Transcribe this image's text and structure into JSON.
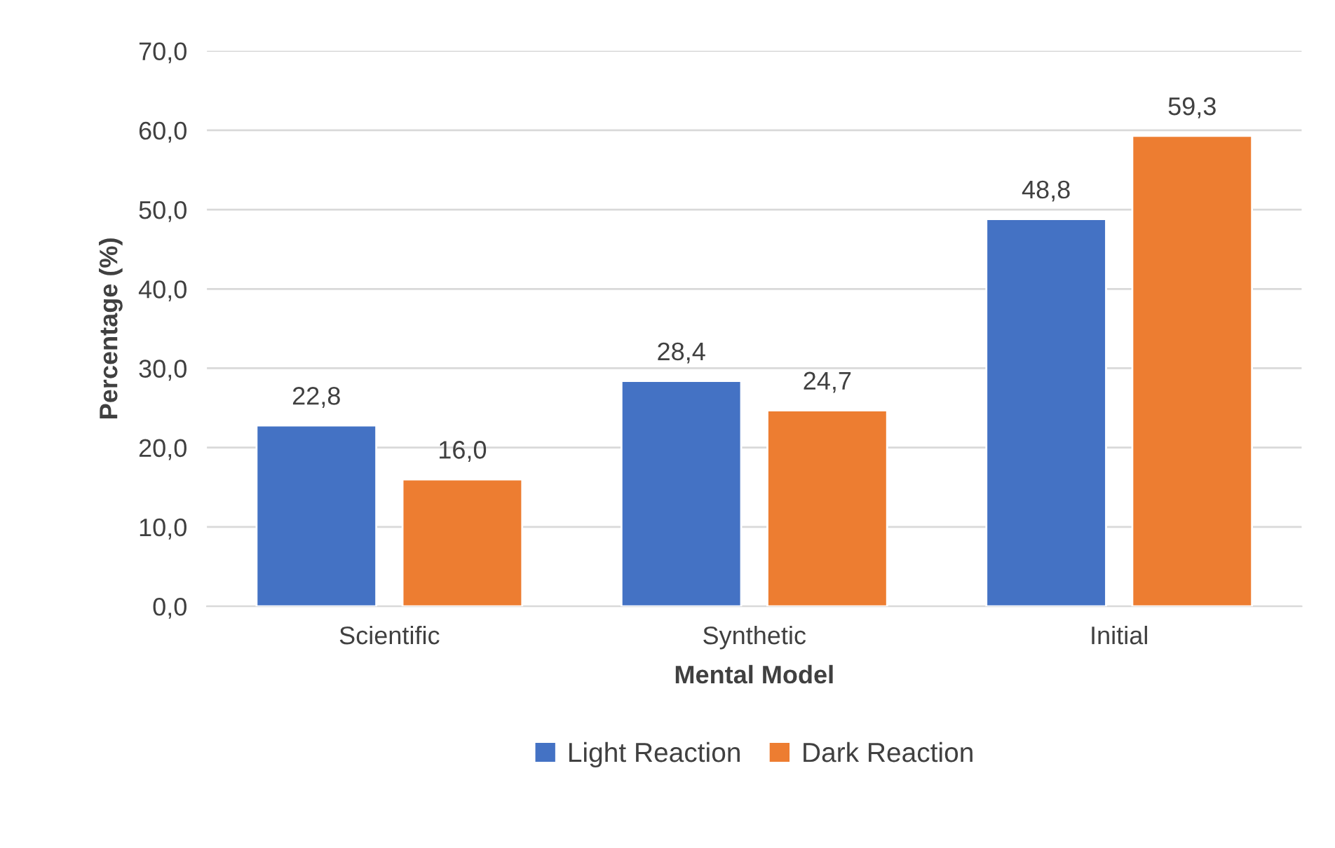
{
  "chart_data": {
    "type": "bar",
    "xlabel": "Mental Model",
    "ylabel": "Percentage (%)",
    "categories": [
      "Scientific",
      "Synthetic",
      "Initial"
    ],
    "series": [
      {
        "name": "Light Reaction",
        "color": "#4472c4",
        "values": [
          22.8,
          28.4,
          48.8
        ],
        "value_labels": [
          "22,8",
          "28,4",
          "48,8"
        ]
      },
      {
        "name": "Dark Reaction",
        "color": "#ed7d31",
        "values": [
          16.0,
          24.7,
          59.3
        ],
        "value_labels": [
          "16,0",
          "24,7",
          "59,3"
        ]
      }
    ],
    "ylim": [
      0,
      70
    ],
    "yticks": [
      {
        "value": 0,
        "label": "0,0"
      },
      {
        "value": 10,
        "label": "10,0"
      },
      {
        "value": 20,
        "label": "20,0"
      },
      {
        "value": 30,
        "label": "30,0"
      },
      {
        "value": 40,
        "label": "40,0"
      },
      {
        "value": 50,
        "label": "50,0"
      },
      {
        "value": 60,
        "label": "60,0"
      },
      {
        "value": 70,
        "label": "70,0"
      }
    ],
    "grid": "y",
    "legend": "bottom"
  }
}
